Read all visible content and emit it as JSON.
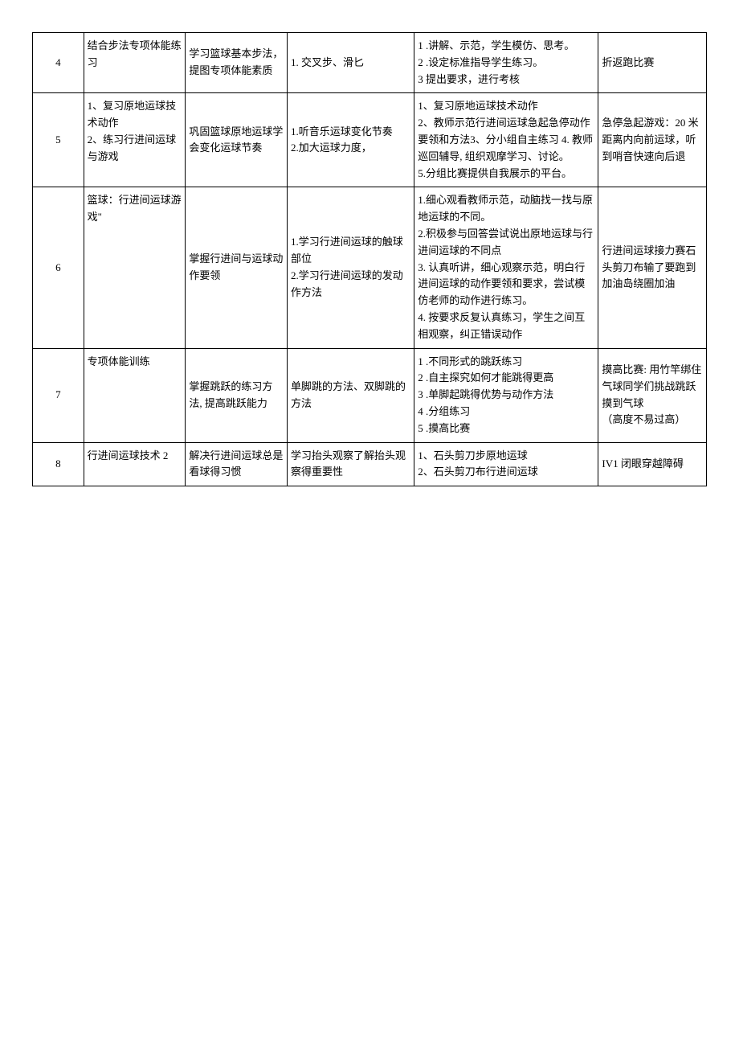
{
  "rows": [
    {
      "num": "4",
      "topic": "结合步法专项体能练习",
      "goal": "学习篮球基本步法，提图专项体能素质",
      "points": "1. 交叉步、滑匕",
      "method": "1        .讲解、示范，学生模仿、思考。\n2        .设定标准指导学生练习。\n3 提出要求，进行考核",
      "game": "折返跑比赛"
    },
    {
      "num": "5",
      "topic": "1、复习原地运球技术动作\n2、练习行进间运球与游戏",
      "goal": "巩固篮球原地运球学会变化运球节奏",
      "points": "1.听音乐运球变化节奏\n2.加大运球力度，",
      "method": "1、复习原地运球技术动作\n2、教师示范行进间运球急起急停动作要领和方法3、分小组自主练习 4. 教师巡回辅导, 组织观摩学习、讨论。\n5.分组比赛提供自我展示的平台。",
      "game": "急停急起游戏：20 米距离内向前运球，听到哨音快速向后退"
    },
    {
      "num": "6",
      "topic": "篮球：行进间运球游戏\"",
      "goal": "掌握行进间与运球动作要领",
      "points": "1.学习行进间运球的触球部位\n2.学习行进间运球的发动作方法",
      "method": "1.细心观看教师示范，动脑找一找与原地运球的不同。\n2.积极参与回答尝试说出原地运球与行进间运球的不同点\n3. 认真听讲，细心观察示范，明白行进间运球的动作要领和要求，尝试模仿老师的动作进行练习。\n4. 按要求反复认真练习，学生之间互相观察，纠正错误动作",
      "game": "行进间运球接力赛石头剪刀布输了要跑到加油岛绕圈加油"
    },
    {
      "num": "7",
      "topic": "专项体能训练",
      "goal": "掌握跳跃的练习方法, 提高跳跃能力",
      "points": "单脚跳的方法、双脚跳的方法",
      "method": "1            .不同形式的跳跃练习\n2            .自主探究如何才能跳得更高\n3            .单脚起跳得优势与动作方法\n4            .分组练习\n5            .摸高比赛",
      "game": "摸高比赛: 用竹竿绑住气球同学们挑战跳跃摸到气球\n（高度不易过高）"
    },
    {
      "num": "8",
      "topic": "行进间运球技术 2",
      "goal": "解决行进间运球总是看球得习惯",
      "points": "学习抬头观察了解抬头观察得重要性",
      "method": "1、石头剪刀步原地运球\n2、石头剪刀布行进间运球",
      "game": "IV1 闭眼穿越障碍"
    }
  ]
}
